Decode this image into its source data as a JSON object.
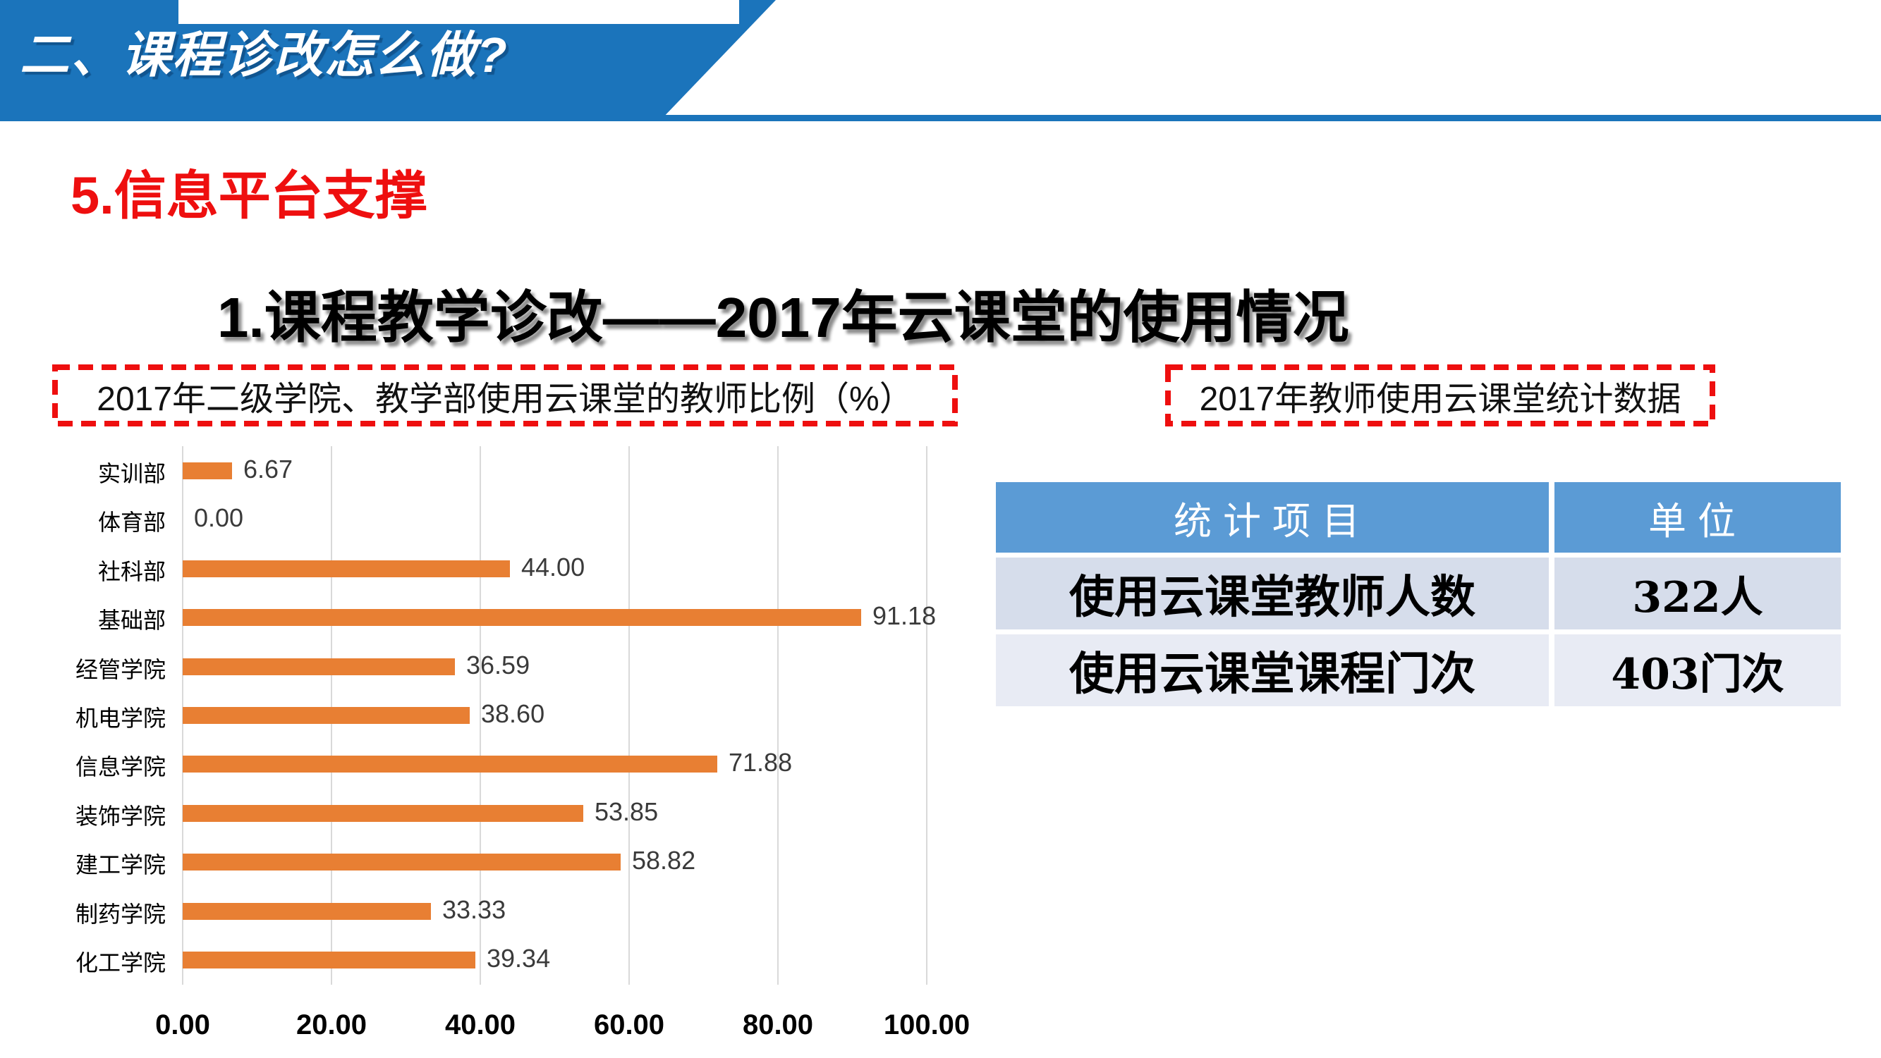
{
  "banner": {
    "title": "二、课程诊改怎么做?",
    "bg_color": "#1b74bb"
  },
  "subtitle": "5.信息平台支撑",
  "main_title": "1.课程教学诊改——2017年云课堂的使用情况",
  "chart_label": "2017年二级学院、教学部使用云课堂的教师比例（%）",
  "table_label": "2017年教师使用云课堂统计数据",
  "accent_colors": {
    "banner_blue": "#1b74bb",
    "red": "#ee0f0f",
    "bar_orange": "#e87f33",
    "gridline_gray": "#d9d9d9",
    "table_header_blue": "#5b9bd5",
    "table_row1_bg": "#d6ddeb",
    "table_row2_bg": "#e8ebf4"
  },
  "chart_data": {
    "type": "bar",
    "orientation": "horizontal",
    "title": "2017年二级学院、教学部使用云课堂的教师比例（%）",
    "categories": [
      "实训部",
      "体育部",
      "社科部",
      "基础部",
      "经管学院",
      "机电学院",
      "信息学院",
      "装饰学院",
      "建工学院",
      "制药学院",
      "化工学院"
    ],
    "values": [
      6.67,
      0.0,
      44.0,
      91.18,
      36.59,
      38.6,
      71.88,
      53.85,
      58.82,
      33.33,
      39.34
    ],
    "value_labels": [
      "6.67",
      "0.00",
      "44.00",
      "91.18",
      "36.59",
      "38.60",
      "71.88",
      "53.85",
      "58.82",
      "33.33",
      "39.34"
    ],
    "x_ticks": [
      "0.00",
      "20.00",
      "40.00",
      "60.00",
      "80.00",
      "100.00"
    ],
    "x_tick_values": [
      0,
      20,
      40,
      60,
      80,
      100
    ],
    "xlim": [
      0,
      100
    ],
    "grid": true,
    "legend": false,
    "bar_color": "#e87f33"
  },
  "table": {
    "headers": [
      "统计项目",
      "单位"
    ],
    "rows": [
      [
        "使用云课堂教师人数",
        "322人"
      ],
      [
        "使用云课堂课程门次",
        "403门次"
      ]
    ]
  }
}
